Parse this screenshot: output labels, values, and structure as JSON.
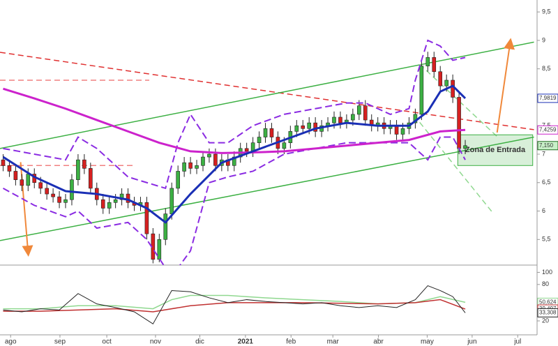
{
  "chart_data": [
    {
      "type": "candlestick",
      "open": [
        6.9,
        6.8,
        6.7,
        6.55,
        6.45,
        6.65,
        6.5,
        6.4,
        6.3,
        6.25,
        6.15,
        6.2,
        6.55,
        6.9,
        6.75,
        6.4,
        6.2,
        6.05,
        6.15,
        6.2,
        6.3,
        6.15,
        6.1,
        6.15,
        5.6,
        5.15,
        5.5,
        5.95,
        6.4,
        6.7,
        6.85,
        6.75,
        6.8,
        6.95,
        7.0,
        6.8,
        6.9,
        6.8,
        6.95,
        7.1,
        7.05,
        7.2,
        7.3,
        7.45,
        7.3,
        7.1,
        7.2,
        7.4,
        7.5,
        7.45,
        7.55,
        7.4,
        7.5,
        7.55,
        7.65,
        7.55,
        7.6,
        7.7,
        7.85,
        7.6,
        7.5,
        7.55,
        7.45,
        7.5,
        7.35,
        7.45,
        7.55,
        7.7,
        8.55,
        8.7,
        8.45,
        8.2,
        8.3,
        8.0,
        7.1
      ],
      "high": [
        7.0,
        6.9,
        6.8,
        6.65,
        6.75,
        6.75,
        6.6,
        6.5,
        6.4,
        6.35,
        6.3,
        6.65,
        7.0,
        7.0,
        6.85,
        6.5,
        6.3,
        6.25,
        6.3,
        6.4,
        6.4,
        6.25,
        6.25,
        6.25,
        5.7,
        5.6,
        6.05,
        6.5,
        6.8,
        6.95,
        6.95,
        6.9,
        7.05,
        7.1,
        7.1,
        7.0,
        7.0,
        7.05,
        7.2,
        7.2,
        7.3,
        7.4,
        7.55,
        7.55,
        7.4,
        7.3,
        7.5,
        7.6,
        7.6,
        7.65,
        7.65,
        7.6,
        7.65,
        7.75,
        7.75,
        7.7,
        7.8,
        7.95,
        7.95,
        7.7,
        7.65,
        7.65,
        7.6,
        7.6,
        7.55,
        7.65,
        7.8,
        8.65,
        8.8,
        8.8,
        8.55,
        8.4,
        8.4,
        8.1,
        7.25
      ],
      "low": [
        6.7,
        6.6,
        6.45,
        6.35,
        6.35,
        6.4,
        6.3,
        6.2,
        6.15,
        6.05,
        6.05,
        6.1,
        6.45,
        6.65,
        6.3,
        6.1,
        5.95,
        5.95,
        6.05,
        6.1,
        6.05,
        6.0,
        6.0,
        5.5,
        5.08,
        5.1,
        5.4,
        5.85,
        6.3,
        6.6,
        6.65,
        6.65,
        6.7,
        6.85,
        6.7,
        6.7,
        6.7,
        6.7,
        6.85,
        6.95,
        6.95,
        7.1,
        7.2,
        7.2,
        7.0,
        7.0,
        7.1,
        7.3,
        7.35,
        7.35,
        7.3,
        7.3,
        7.4,
        7.45,
        7.45,
        7.45,
        7.5,
        7.6,
        7.5,
        7.4,
        7.4,
        7.35,
        7.35,
        7.25,
        7.25,
        7.35,
        7.45,
        7.6,
        8.45,
        8.35,
        8.1,
        8.1,
        7.9,
        7.0,
        7.0
      ],
      "close": [
        6.8,
        6.7,
        6.55,
        6.45,
        6.65,
        6.5,
        6.4,
        6.3,
        6.25,
        6.15,
        6.2,
        6.55,
        6.9,
        6.75,
        6.4,
        6.2,
        6.05,
        6.15,
        6.2,
        6.3,
        6.15,
        6.1,
        6.15,
        5.6,
        5.15,
        5.5,
        5.95,
        6.4,
        6.7,
        6.85,
        6.75,
        6.8,
        6.95,
        7.0,
        6.8,
        6.9,
        6.8,
        6.95,
        7.1,
        7.05,
        7.2,
        7.3,
        7.45,
        7.3,
        7.1,
        7.2,
        7.4,
        7.5,
        7.45,
        7.55,
        7.4,
        7.5,
        7.55,
        7.65,
        7.55,
        7.6,
        7.7,
        7.85,
        7.6,
        7.5,
        7.55,
        7.45,
        7.5,
        7.35,
        7.45,
        7.55,
        7.7,
        8.55,
        8.7,
        8.45,
        8.2,
        8.3,
        8.0,
        7.1,
        7.15
      ],
      "close_label": "7,150",
      "up_color": "#3cb043",
      "down_color": "#d62020",
      "label_color": "#c8f0c8",
      "xlim": [
        -0.5,
        85.5
      ],
      "xticks": [
        {
          "value": 1.2,
          "label": "ago"
        },
        {
          "value": 9.1,
          "label": "sep"
        },
        {
          "value": 16.6,
          "label": "oct"
        },
        {
          "value": 24.4,
          "label": "nov"
        },
        {
          "value": 31.5,
          "label": "dic"
        },
        {
          "value": 38.8,
          "label": "2021",
          "bold": true
        },
        {
          "value": 46.1,
          "label": "feb"
        },
        {
          "value": 52.8,
          "label": "mar"
        },
        {
          "value": 60.1,
          "label": "abr"
        },
        {
          "value": 67.9,
          "label": "may"
        },
        {
          "value": 75.1,
          "label": "jun"
        },
        {
          "value": 82.4,
          "label": "jul"
        }
      ],
      "ylim": [
        5.05,
        9.71
      ],
      "yticks": [
        {
          "value": 5.5,
          "label": "5,5"
        },
        6,
        {
          "value": 6.5,
          "label": "6,5"
        },
        7,
        {
          "value": 7.5,
          "label": "7,5"
        },
        8,
        {
          "value": 8.5,
          "label": "8,5"
        },
        9,
        {
          "value": 9.5,
          "label": "9,5"
        }
      ],
      "series": [
        {
          "color": "#8a2be2",
          "width": 2,
          "dash": true,
          "x": [
            0,
            5,
            10,
            12,
            15,
            20,
            23,
            26,
            28,
            30,
            33,
            36,
            40,
            45,
            50,
            55,
            58,
            62,
            65,
            66,
            68,
            70,
            72,
            74
          ],
          "values": [
            7.1,
            7.0,
            6.9,
            7.3,
            7.1,
            6.6,
            6.5,
            6.4,
            7.2,
            7.7,
            7.2,
            7.2,
            7.5,
            7.7,
            7.8,
            7.9,
            7.9,
            7.7,
            7.8,
            8.3,
            9.0,
            8.9,
            8.65,
            8.7
          ]
        },
        {
          "color": "#8a2be2",
          "width": 2,
          "dash": true,
          "x": [
            0,
            5,
            10,
            12,
            15,
            20,
            23,
            26,
            28,
            30,
            33,
            36,
            40,
            45,
            50,
            55,
            58,
            62,
            65,
            66,
            68,
            70,
            72,
            74
          ],
          "values": [
            6.4,
            6.1,
            5.9,
            6.0,
            5.7,
            5.8,
            5.5,
            5.0,
            5.0,
            5.3,
            6.5,
            6.6,
            6.7,
            7.0,
            7.1,
            7.2,
            7.2,
            7.2,
            7.2,
            7.1,
            6.9,
            7.3,
            7.3,
            6.9
          ]
        },
        {
          "color": "#cc22cc",
          "width": 3,
          "dash": false,
          "x": [
            0,
            5,
            10,
            15,
            20,
            25,
            30,
            35,
            40,
            45,
            50,
            55,
            60,
            65,
            70,
            74
          ],
          "values": [
            8.15,
            7.98,
            7.8,
            7.6,
            7.4,
            7.2,
            7.05,
            7.02,
            7.03,
            7.05,
            7.1,
            7.15,
            7.2,
            7.25,
            7.4,
            7.4259
          ],
          "last_label": "7,4259"
        },
        {
          "color": "#1a2fb5",
          "width": 3,
          "dash": false,
          "x": [
            0,
            5,
            10,
            15,
            20,
            23,
            26,
            30,
            35,
            40,
            45,
            50,
            55,
            60,
            65,
            68,
            70,
            72,
            74
          ],
          "values": [
            6.95,
            6.6,
            6.35,
            6.3,
            6.2,
            6.05,
            5.8,
            6.3,
            6.85,
            7.05,
            7.25,
            7.45,
            7.55,
            7.5,
            7.5,
            7.75,
            8.1,
            8.2,
            7.9819
          ],
          "last_label": "7,9819"
        }
      ],
      "lines": [
        {
          "color": "#e03030",
          "dash": true,
          "x": [
            -0.5,
            85
          ],
          "values": [
            8.79,
            7.43
          ]
        },
        {
          "color": "#f08080",
          "dash": true,
          "x": [
            -0.5,
            23.4
          ],
          "values": [
            8.3,
            8.3
          ]
        },
        {
          "color": "#f08080",
          "dash": true,
          "x": [
            -0.5,
            21.2
          ],
          "values": [
            6.8,
            6.8
          ]
        },
        {
          "color": "#3cb043",
          "dash": false,
          "x": [
            -0.5,
            85
          ],
          "values": [
            7.1,
            8.97
          ]
        },
        {
          "color": "#3cb043",
          "dash": false,
          "x": [
            -0.5,
            85
          ],
          "values": [
            5.48,
            7.3
          ]
        },
        {
          "color": "#8fd88f",
          "dash": true,
          "x": [
            66.7,
            79.3
          ],
          "values": [
            8.58,
            7.29
          ]
        },
        {
          "color": "#8fd88f",
          "dash": true,
          "x": [
            66.7,
            78.4
          ],
          "values": [
            7.56,
            5.97
          ]
        },
        {
          "color": "#f0883a",
          "dash": false,
          "arrow": true,
          "x": [
            2.8,
            4
          ],
          "values": [
            6.86,
            5.27
          ]
        },
        {
          "color": "#f0883a",
          "dash": false,
          "arrow": true,
          "x": [
            79.1,
            81.2
          ],
          "values": [
            7.38,
            8.97
          ]
        }
      ],
      "zone": {
        "label": "Zona de Entrada",
        "color": "#3cb043",
        "x": [
          72.8,
          84.8
        ],
        "values": [
          7.34,
          6.8
        ]
      }
    },
    {
      "type": "line",
      "xlim": [
        -0.5,
        85.5
      ],
      "ylim": [
        -3,
        112
      ],
      "yticks": [
        20,
        80,
        100
      ],
      "series": [
        {
          "color": "#8fd88f",
          "width": 1.5,
          "x": [
            0,
            6,
            12,
            18,
            24,
            27,
            30,
            36,
            42,
            48,
            54,
            60,
            66,
            70,
            74
          ],
          "values": [
            40,
            40,
            45,
            45,
            40,
            55,
            62,
            62,
            58,
            55,
            52,
            48,
            50,
            60,
            50.624
          ],
          "last_label": "50,624"
        },
        {
          "color": "#c03030",
          "width": 1.5,
          "x": [
            0,
            6,
            12,
            18,
            24,
            30,
            36,
            42,
            48,
            54,
            60,
            66,
            70,
            74
          ],
          "values": [
            36,
            36,
            38,
            40,
            35,
            45,
            50,
            50,
            50,
            49,
            48,
            50,
            55,
            39.497
          ],
          "last_label": "39,497"
        },
        {
          "color": "#222222",
          "width": 1,
          "x": [
            0,
            3,
            6,
            9,
            12,
            15,
            18,
            21,
            24,
            27,
            30,
            33,
            36,
            39,
            42,
            45,
            48,
            51,
            54,
            57,
            60,
            63,
            66,
            68,
            70,
            72,
            74
          ],
          "values": [
            38,
            35,
            40,
            38,
            65,
            48,
            42,
            35,
            15,
            70,
            68,
            58,
            50,
            55,
            52,
            50,
            48,
            50,
            45,
            42,
            45,
            42,
            55,
            78,
            70,
            60,
            33.308
          ],
          "last_label": "33,308"
        }
      ]
    }
  ]
}
